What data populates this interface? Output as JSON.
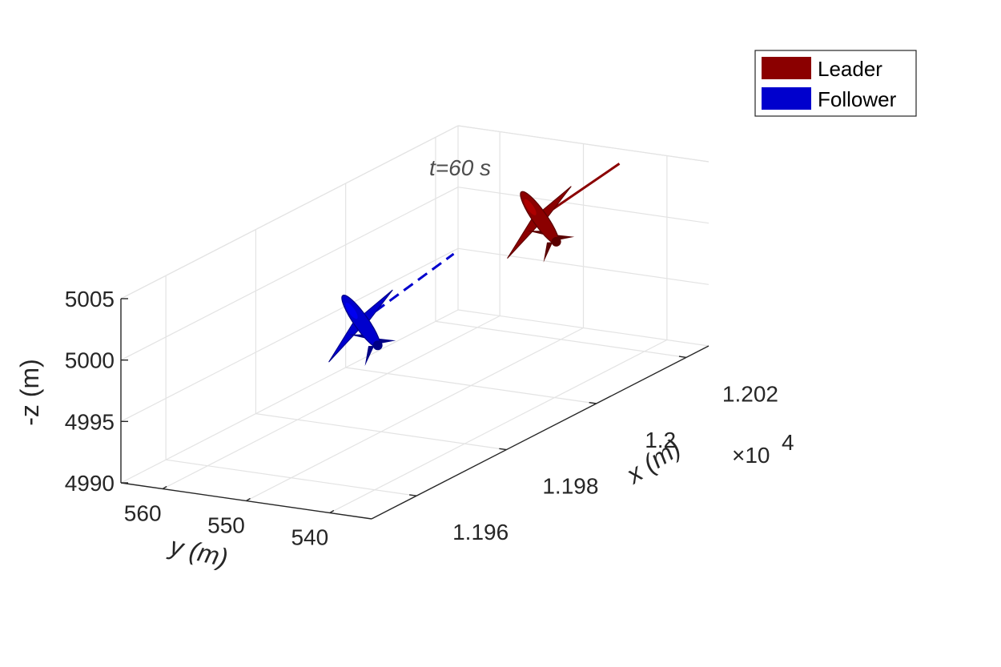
{
  "chart_data": {
    "type": "3d-line",
    "annotation": "t=60 s",
    "xlabel": "x (m)",
    "ylabel": "y (m)",
    "zlabel": "-z (m)",
    "x_exponent": "×10",
    "x_exponent_power": "4",
    "x_ticks": [
      11960,
      11980,
      12000,
      12020
    ],
    "x_tick_labels": [
      "1.196",
      "1.198",
      "1.2",
      "1.202"
    ],
    "y_ticks": [
      560,
      550,
      540
    ],
    "y_tick_labels": [
      "560",
      "550",
      "540"
    ],
    "z_ticks": [
      4990,
      4995,
      5000,
      5005
    ],
    "z_tick_labels": [
      "4990",
      "4995",
      "5000",
      "5005"
    ],
    "xlim": [
      11950,
      12025
    ],
    "ylim": [
      535,
      565
    ],
    "zlim": [
      4990,
      5005
    ],
    "grid": true,
    "legend_position": "top-right",
    "series": [
      {
        "name": "Leader",
        "color": "#8B0000",
        "icon": "aircraft-icon",
        "position": {
          "x": 12006,
          "y": 545,
          "z": 5003
        },
        "trail": {
          "x": [
            12006,
            12020
          ],
          "y": [
            545,
            543
          ],
          "z": [
            5003,
            5005
          ]
        }
      },
      {
        "name": "Follower",
        "color": "#0000CD",
        "icon": "aircraft-icon",
        "position": {
          "x": 11983,
          "y": 554,
          "z": 4998
        },
        "trail": {
          "x": [
            11983,
            11998
          ],
          "y": [
            554,
            551
          ],
          "z": [
            4998,
            5001
          ]
        }
      }
    ]
  }
}
